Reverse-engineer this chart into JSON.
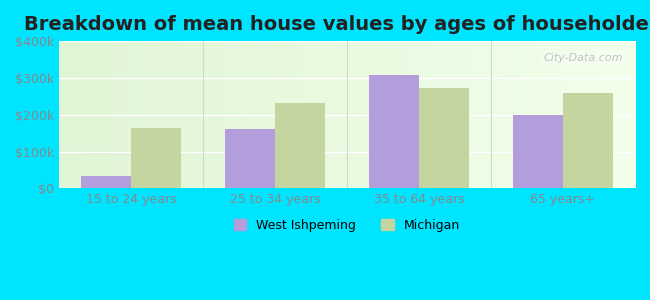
{
  "title": "Breakdown of mean house values by ages of householders",
  "categories": [
    "15 to 24 years",
    "25 to 34 years",
    "35 to 64 years",
    "65 years+"
  ],
  "west_ishpeming": [
    35000,
    162000,
    307000,
    200000
  ],
  "michigan": [
    165000,
    232000,
    272000,
    258000
  ],
  "bar_color_wi": "#b39ddb",
  "bar_color_mi": "#c5d5a0",
  "ylim": [
    0,
    400000
  ],
  "yticks": [
    0,
    100000,
    200000,
    300000,
    400000
  ],
  "ytick_labels": [
    "$0",
    "$100k",
    "$200k",
    "$300k",
    "$400k"
  ],
  "background_top": "#e8f5e0",
  "background_bottom": "#f0fce8",
  "outer_bg": "#00e5ff",
  "legend_wi": "West Ishpeming",
  "legend_mi": "Michigan",
  "title_fontsize": 14,
  "tick_fontsize": 9,
  "legend_fontsize": 9,
  "bar_width": 0.35,
  "watermark": "City-Data.com"
}
